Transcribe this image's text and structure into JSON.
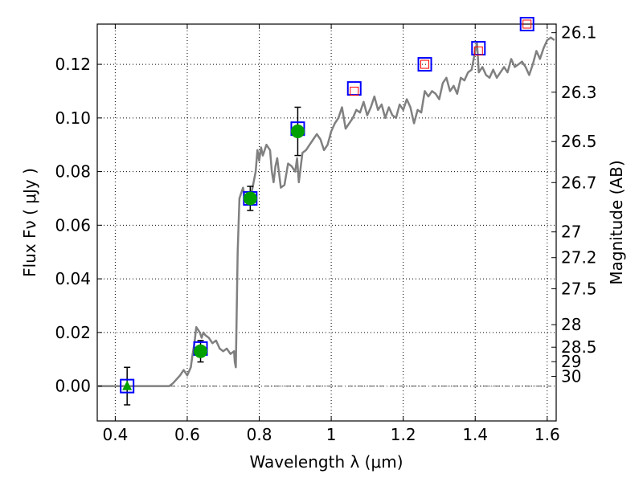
{
  "chart_data": {
    "type": "scatter",
    "title": "",
    "xlabel": "Wavelength  λ (μm)",
    "ylabel": "Flux  Fν  ( μJy )",
    "y2label": "Magnitude (AB)",
    "xlim": [
      0.35,
      1.625
    ],
    "ylim": [
      -0.013,
      0.135
    ],
    "grid": true,
    "x_ticks": [
      0.4,
      0.6,
      0.8,
      1.0,
      1.2,
      1.4,
      1.6
    ],
    "x_tick_labels": [
      "0.4",
      "0.6",
      "0.8",
      "1",
      "1.2",
      "1.4",
      "1.6"
    ],
    "y_ticks": [
      0.0,
      0.02,
      0.04,
      0.06,
      0.08,
      0.1,
      0.12
    ],
    "y_tick_labels": [
      "0.00",
      "0.02",
      "0.04",
      "0.06",
      "0.08",
      "0.10",
      "0.12"
    ],
    "y2_ticks": [
      {
        "label": "26.1",
        "flux": 0.1318
      },
      {
        "label": "26.3",
        "flux": 0.1096
      },
      {
        "label": "26.5",
        "flux": 0.0912
      },
      {
        "label": "26.7",
        "flux": 0.0759
      },
      {
        "label": "27",
        "flux": 0.0575
      },
      {
        "label": "27.2",
        "flux": 0.0479
      },
      {
        "label": "27.5",
        "flux": 0.0363
      },
      {
        "label": "28",
        "flux": 0.0229
      },
      {
        "label": "28.5",
        "flux": 0.0145
      },
      {
        "label": "29",
        "flux": 0.0091
      },
      {
        "label": "30",
        "flux": 0.0036
      }
    ],
    "series": [
      {
        "role": "model-spectrum",
        "style": "line",
        "color": "#808080",
        "x": [
          0.35,
          0.55,
          0.56,
          0.58,
          0.59,
          0.6,
          0.61,
          0.615,
          0.62,
          0.625,
          0.63,
          0.635,
          0.64,
          0.645,
          0.65,
          0.66,
          0.67,
          0.68,
          0.69,
          0.7,
          0.71,
          0.72,
          0.73,
          0.732,
          0.735,
          0.74,
          0.745,
          0.75,
          0.755,
          0.76,
          0.77,
          0.78,
          0.79,
          0.795,
          0.8,
          0.805,
          0.81,
          0.82,
          0.83,
          0.835,
          0.84,
          0.845,
          0.85,
          0.86,
          0.87,
          0.88,
          0.89,
          0.9,
          0.905,
          0.91,
          0.92,
          0.93,
          0.94,
          0.95,
          0.96,
          0.97,
          0.98,
          0.99,
          1.0,
          1.01,
          1.02,
          1.03,
          1.04,
          1.05,
          1.06,
          1.07,
          1.08,
          1.09,
          1.1,
          1.11,
          1.12,
          1.13,
          1.14,
          1.15,
          1.16,
          1.17,
          1.18,
          1.19,
          1.2,
          1.21,
          1.22,
          1.23,
          1.24,
          1.25,
          1.26,
          1.27,
          1.28,
          1.29,
          1.3,
          1.31,
          1.32,
          1.33,
          1.34,
          1.35,
          1.36,
          1.37,
          1.38,
          1.39,
          1.4,
          1.405,
          1.41,
          1.415,
          1.42,
          1.43,
          1.44,
          1.45,
          1.46,
          1.47,
          1.48,
          1.49,
          1.5,
          1.51,
          1.52,
          1.53,
          1.54,
          1.55,
          1.56,
          1.57,
          1.58,
          1.59,
          1.6,
          1.61,
          1.62
        ],
        "y": [
          0.0,
          0.0,
          0.001,
          0.004,
          0.006,
          0.004,
          0.007,
          0.012,
          0.016,
          0.022,
          0.021,
          0.02,
          0.018,
          0.02,
          0.019,
          0.018,
          0.016,
          0.017,
          0.014,
          0.013,
          0.014,
          0.012,
          0.013,
          0.009,
          0.007,
          0.05,
          0.07,
          0.072,
          0.074,
          0.07,
          0.072,
          0.073,
          0.08,
          0.088,
          0.084,
          0.089,
          0.086,
          0.09,
          0.088,
          0.08,
          0.076,
          0.082,
          0.085,
          0.074,
          0.075,
          0.083,
          0.082,
          0.08,
          0.085,
          0.076,
          0.087,
          0.088,
          0.09,
          0.092,
          0.094,
          0.092,
          0.088,
          0.09,
          0.095,
          0.098,
          0.1,
          0.104,
          0.096,
          0.098,
          0.1,
          0.103,
          0.102,
          0.106,
          0.101,
          0.104,
          0.108,
          0.103,
          0.105,
          0.1,
          0.104,
          0.101,
          0.1,
          0.105,
          0.103,
          0.107,
          0.104,
          0.098,
          0.103,
          0.102,
          0.11,
          0.108,
          0.11,
          0.109,
          0.107,
          0.113,
          0.115,
          0.11,
          0.112,
          0.109,
          0.115,
          0.114,
          0.117,
          0.118,
          0.125,
          0.128,
          0.117,
          0.118,
          0.119,
          0.116,
          0.115,
          0.118,
          0.115,
          0.117,
          0.119,
          0.117,
          0.122,
          0.119,
          0.12,
          0.121,
          0.119,
          0.116,
          0.12,
          0.125,
          0.122,
          0.126,
          0.129,
          0.13,
          0.129
        ]
      },
      {
        "role": "boxes",
        "style": "square",
        "color": "#0000ff",
        "x": [
          0.433,
          0.637,
          0.775,
          0.907,
          1.064,
          1.26,
          1.409,
          1.544
        ],
        "y": [
          0.0,
          0.014,
          0.07,
          0.096,
          0.111,
          0.12,
          0.126,
          0.135
        ]
      },
      {
        "role": "inner-boxes",
        "style": "square",
        "color": "#ff0000",
        "x": [
          1.064,
          1.26,
          1.409,
          1.544
        ],
        "y": [
          0.11,
          0.12,
          0.125,
          0.135
        ]
      },
      {
        "role": "circles",
        "style": "circle",
        "color": "#00a000",
        "x": [
          0.637,
          0.775,
          0.907
        ],
        "y": [
          0.013,
          0.07,
          0.095
        ],
        "err": [
          0.004,
          0.0045,
          0.009
        ]
      },
      {
        "role": "triangle",
        "style": "triangle",
        "color": "#00a000",
        "x": [
          0.433
        ],
        "y": [
          0.0
        ],
        "err": [
          0.007
        ]
      }
    ]
  }
}
